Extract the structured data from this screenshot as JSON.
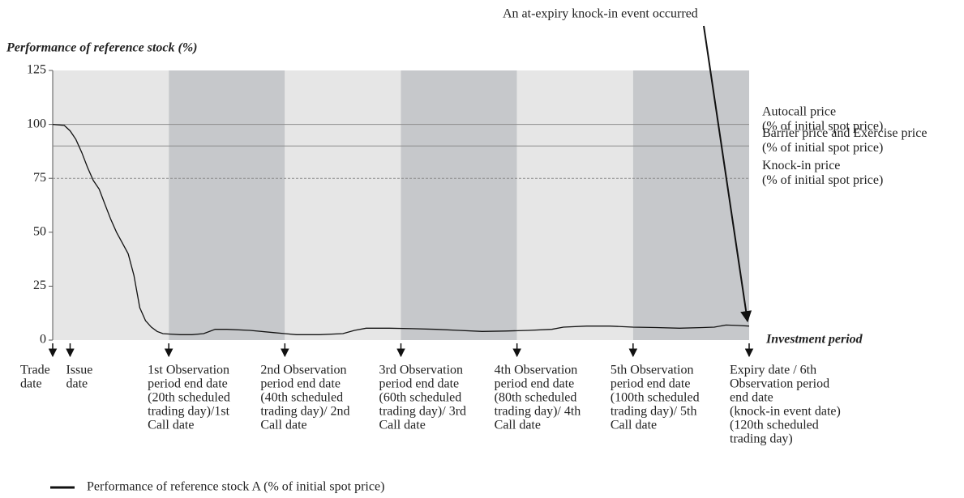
{
  "chart_data": {
    "type": "line",
    "y_label": "Performance of reference stock (%)",
    "x_label": "Investment period",
    "annotation": "An at-expiry knock-in event occurred",
    "xlim": [
      0,
      120
    ],
    "ylim": [
      0,
      125
    ],
    "yticks": [
      0,
      25,
      50,
      75,
      100,
      125
    ],
    "band_colors": [
      "#e6e6e6",
      "#c6c8cb"
    ],
    "series": [
      {
        "name": "Performance of reference stock A (% of initial spot price)",
        "color": "#111111",
        "x": [
          0,
          2,
          3,
          4,
          5,
          6,
          7,
          8,
          9,
          10,
          11,
          12,
          13,
          14,
          15,
          16,
          17,
          18,
          19,
          20,
          22,
          24,
          26,
          28,
          30,
          34,
          38,
          40,
          42,
          46,
          50,
          52,
          54,
          58,
          62,
          66,
          70,
          74,
          78,
          82,
          86,
          88,
          92,
          96,
          100,
          104,
          108,
          112,
          114,
          116,
          118,
          120
        ],
        "values": [
          100,
          99.5,
          97,
          93,
          87,
          80,
          74,
          70,
          63,
          56,
          50,
          45,
          40,
          30,
          15,
          9,
          6,
          4,
          3,
          2.8,
          2.5,
          2.5,
          3,
          5,
          5,
          4.5,
          3.5,
          3,
          2.5,
          2.5,
          3,
          4.5,
          5.5,
          5.5,
          5.3,
          5,
          4.5,
          4,
          4.2,
          4.5,
          5,
          6,
          6.5,
          6.5,
          6,
          5.8,
          5.5,
          5.8,
          6,
          7,
          6.8,
          6.5
        ]
      }
    ],
    "reference_lines": [
      {
        "value": 100,
        "label": [
          "Autocall price",
          "(% of initial spot price)"
        ],
        "color": "#8c8c8c",
        "dashed": false
      },
      {
        "value": 90,
        "label": [
          "Barrier price and Exercise price",
          "(% of initial spot price)"
        ],
        "color": "#8c8c8c",
        "dashed": false
      },
      {
        "value": 75,
        "label": [
          "Knock-in price",
          "(% of initial spot price)"
        ],
        "color": "#8c8c8c",
        "dashed": true
      }
    ],
    "markers": [
      {
        "x": 0,
        "label": [
          "Trade",
          "date"
        ]
      },
      {
        "x": 3,
        "label": [
          "Issue",
          "date"
        ]
      },
      {
        "x": 20,
        "label": [
          "1st Observation",
          "period end date",
          "(20th scheduled",
          "trading day)/1st",
          "Call date"
        ]
      },
      {
        "x": 40,
        "label": [
          "2nd Observation",
          "period end date",
          "(40th scheduled",
          "trading day)/ 2nd",
          "Call date"
        ]
      },
      {
        "x": 60,
        "label": [
          "3rd Observation",
          "period end date",
          "(60th scheduled",
          "trading day)/ 3rd",
          "Call date"
        ]
      },
      {
        "x": 80,
        "label": [
          "4th Observation",
          "period end date",
          "(80th scheduled",
          "trading day)/ 4th",
          "Call date"
        ]
      },
      {
        "x": 100,
        "label": [
          "5th Observation",
          "period end date",
          "(100th scheduled",
          "trading day)/ 5th",
          "Call date"
        ]
      },
      {
        "x": 120,
        "label": [
          "Expiry date / 6th",
          "Observation period",
          "end date",
          "(knock-in event date)",
          "(120th scheduled",
          "trading day)"
        ]
      }
    ]
  }
}
